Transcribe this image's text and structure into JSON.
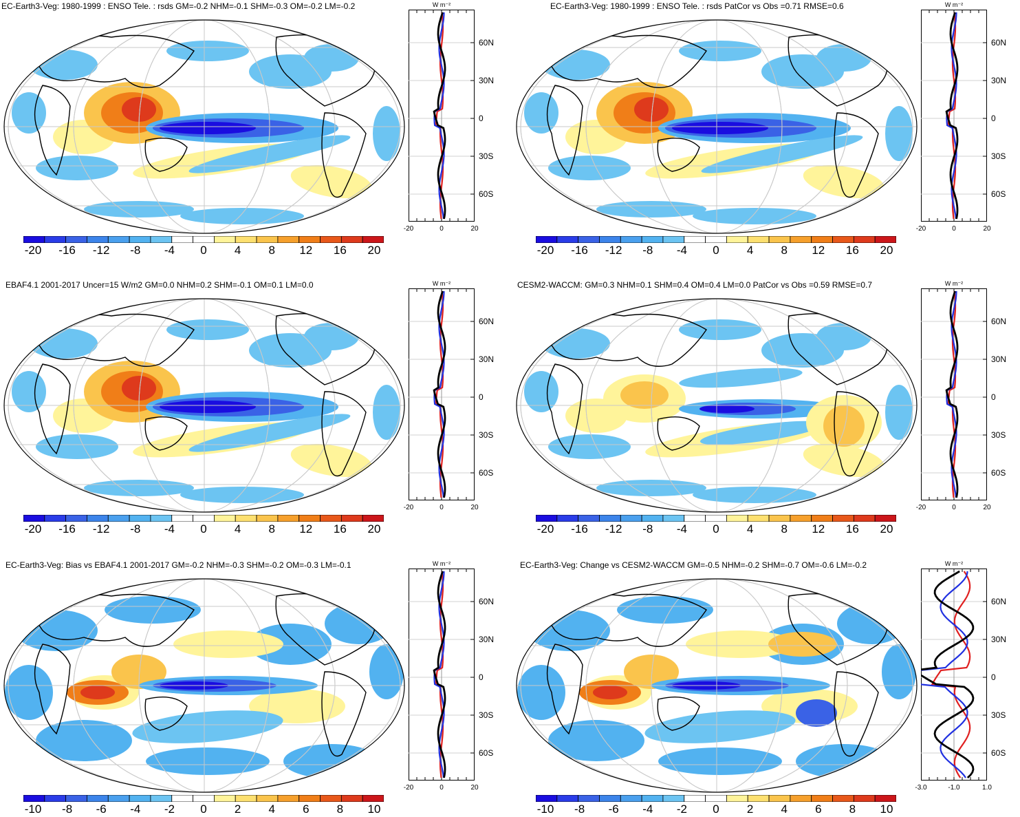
{
  "palette": [
    "#1a0de0",
    "#2a3ce8",
    "#3a62e6",
    "#3c84ea",
    "#4aa0ee",
    "#52b2f0",
    "#6cc4f2",
    "#ffffff",
    "#ffffff",
    "#fff49a",
    "#fde070",
    "#fac44c",
    "#f6a02c",
    "#f07e18",
    "#e8581a",
    "#de3a1c",
    "#cc161a"
  ],
  "lat_labels": [
    "60N",
    "30N",
    "0",
    "30S",
    "60S"
  ],
  "unit_label": "W m⁻²",
  "panels": [
    {
      "title": "EC-Earth3-Veg: 1980-1999 : ENSO Tele. : rsds GM=-0.2 NHM=-0.1 SHM=-0.3 OM=-0.2 LM=-0.2",
      "cbar_labels": [
        "-20",
        "-16",
        "-12",
        "-8",
        "-4",
        "0",
        "4",
        "8",
        "12",
        "16",
        "20"
      ],
      "zonal_ticks": [
        "-20",
        "0",
        "20"
      ],
      "pattern": "enso"
    },
    {
      "title": "EC-Earth3-Veg: 1980-1999 : ENSO Tele. : rsds PatCor vs Obs =0.71 RMSE=0.6",
      "cbar_labels": [
        "-20",
        "-16",
        "-12",
        "-8",
        "-4",
        "0",
        "4",
        "8",
        "12",
        "16",
        "20"
      ],
      "zonal_ticks": [
        "-20",
        "0",
        "20"
      ],
      "pattern": "enso"
    },
    {
      "title": "EBAF4.1 2001-2017 Uncer=15 W/m2 GM=0.0 NHM=0.2 SHM=-0.1 OM=0.1 LM=0.0",
      "cbar_labels": [
        "-20",
        "-16",
        "-12",
        "-8",
        "-4",
        "0",
        "4",
        "8",
        "12",
        "16",
        "20"
      ],
      "zonal_ticks": [
        "-20",
        "0",
        "20"
      ],
      "pattern": "obs"
    },
    {
      "title": "CESM2-WACCM: GM=0.3 NHM=0.1 SHM=0.4 OM=0.4 LM=0.0 PatCor vs Obs =0.59 RMSE=0.7",
      "cbar_labels": [
        "-20",
        "-16",
        "-12",
        "-8",
        "-4",
        "0",
        "4",
        "8",
        "12",
        "16",
        "20"
      ],
      "zonal_ticks": [
        "-20",
        "0",
        "20"
      ],
      "pattern": "cesm"
    },
    {
      "title": "EC-Earth3-Veg: Bias vs EBAF4.1 2001-2017 GM=-0.2 NHM=-0.3 SHM=-0.2 OM=-0.3 LM=-0.1",
      "cbar_labels": [
        "-10",
        "-8",
        "-6",
        "-4",
        "-2",
        "0",
        "2",
        "4",
        "6",
        "8",
        "10"
      ],
      "zonal_ticks": [
        "-20",
        "0",
        "20"
      ],
      "pattern": "bias"
    },
    {
      "title": "EC-Earth3-Veg: Change vs CESM2-WACCM GM=-0.5 NHM=-0.2 SHM=-0.7 OM=-0.6 LM=-0.2",
      "cbar_labels": [
        "-10",
        "-8",
        "-6",
        "-4",
        "-2",
        "0",
        "2",
        "4",
        "6",
        "8",
        "10"
      ],
      "zonal_ticks": [
        "-3.0",
        "-1.0",
        "1.0"
      ],
      "pattern": "change"
    }
  ]
}
